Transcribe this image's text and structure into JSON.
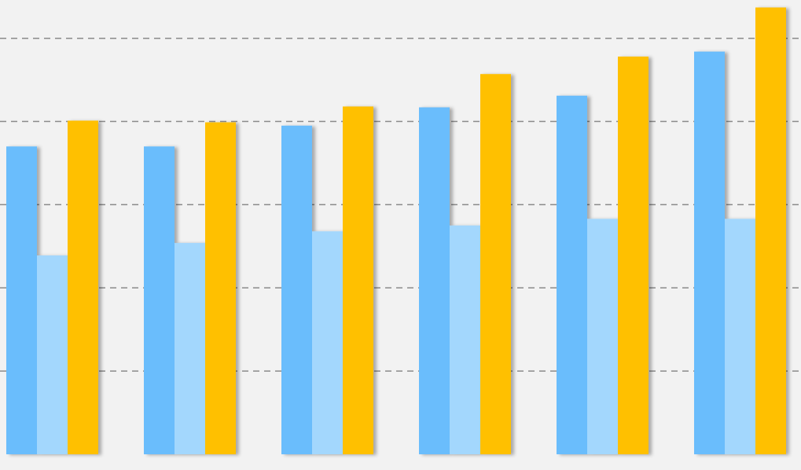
{
  "chart_data": {
    "type": "bar",
    "categories": [
      null,
      null,
      null,
      null,
      null,
      null
    ],
    "series": [
      {
        "color": "#6bbdfc",
        "values": [
          37.0,
          37.0,
          39.5,
          41.7,
          43.1,
          48.4
        ]
      },
      {
        "color": "#a3d7fd",
        "values": [
          23.9,
          25.4,
          26.8,
          27.5,
          28.3,
          28.3
        ]
      },
      {
        "color": "#ffc000",
        "values": [
          40.1,
          39.9,
          41.8,
          45.7,
          47.8,
          53.7
        ]
      }
    ],
    "ylim": [
      0,
      54.6
    ],
    "yticks": [
      10,
      20,
      30,
      40,
      50
    ],
    "grid": true
  }
}
